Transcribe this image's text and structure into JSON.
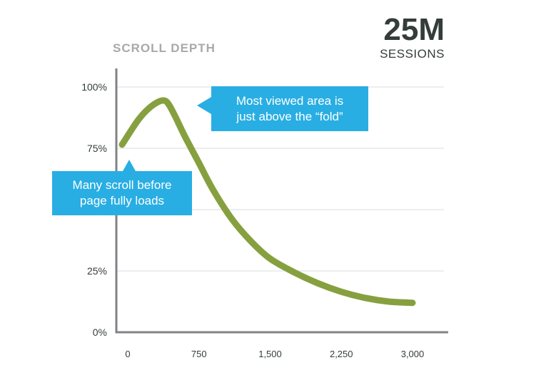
{
  "chart_data": {
    "type": "line",
    "ylabel": "SCROLL DEPTH",
    "xlim": [
      -60,
      3000
    ],
    "ylim": [
      0,
      100
    ],
    "x_ticks": [
      0,
      750,
      1500,
      2250,
      3000
    ],
    "x_tick_labels": [
      "0",
      "750",
      "1,500",
      "2,250",
      "3,000"
    ],
    "y_ticks": [
      0,
      25,
      50,
      75,
      100
    ],
    "y_tick_labels": [
      "0%",
      "25%",
      "",
      "75%",
      "100%"
    ],
    "grid": true,
    "series": [
      {
        "color": "#86a03f",
        "x": [
          -60,
          100,
          200,
          300,
          380,
          430,
          500,
          600,
          750,
          900,
          1100,
          1300,
          1500,
          1750,
          2000,
          2250,
          2500,
          2750,
          3000
        ],
        "y": [
          76.5,
          86,
          90.5,
          93.5,
          94.5,
          93,
          88,
          80,
          69,
          58,
          46,
          37,
          30,
          24.5,
          20,
          16.5,
          14,
          12.5,
          12
        ]
      }
    ],
    "annotations": [
      {
        "id": "peak",
        "text": "Most viewed area is\njust above the “fold”"
      },
      {
        "id": "start",
        "text": "Many scroll before\npage fully loads"
      }
    ]
  },
  "stat": {
    "value": "25M",
    "label": "SESSIONS"
  },
  "colors": {
    "accent_line": "#86a03f",
    "callout": "#29aee3",
    "axis": "#808285",
    "grid": "#e6e7e8",
    "stat_text": "#333d3a"
  }
}
